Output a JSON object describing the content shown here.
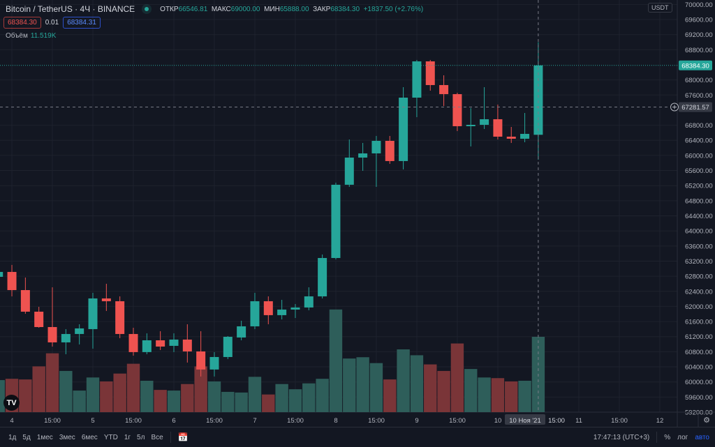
{
  "legend": {
    "title": "Bitcoin / TetherUS · 4Ч · BINANCE",
    "open_label": "ОТКР",
    "open": "66546.81",
    "high_label": "МАКС",
    "high": "69000.00",
    "low_label": "МИН",
    "low": "65888.00",
    "close_label": "ЗАКР",
    "close": "68384.30",
    "change": "+1837.50 (+2.76%)",
    "sell_price": "68384.30",
    "spread": "0.01",
    "buy_price": "68384.31",
    "volume_label": "Объём",
    "volume": "11.519K"
  },
  "price_axis": {
    "currency": "USDT",
    "labels": [
      "70000.00",
      "69600.00",
      "69200.00",
      "68800.00",
      "68000.00",
      "67600.00",
      "66800.00",
      "66400.00",
      "66000.00",
      "65600.00",
      "65200.00",
      "64800.00",
      "64400.00",
      "64000.00",
      "63600.00",
      "63200.00",
      "62800.00",
      "62400.00",
      "62000.00",
      "61600.00",
      "61200.00",
      "60800.00",
      "60400.00",
      "60000.00",
      "59600.00",
      "59200.00"
    ],
    "last_price": "68384.30",
    "crosshair_price": "67281.57"
  },
  "time_axis": {
    "labels": [
      "4",
      "15:00",
      "5",
      "15:00",
      "6",
      "15:00",
      "7",
      "15:00",
      "8",
      "15:00",
      "9",
      "15:00",
      "10",
      "15:00",
      "11",
      "15:00",
      "12"
    ],
    "crosshair_label": "10 Ноя '21"
  },
  "colors": {
    "up": "#26a69a",
    "down": "#ef5350",
    "vol_up": "#2e5e5a",
    "vol_down": "#7a3538",
    "bg": "#131722",
    "grid": "#1e222d"
  },
  "chart_data": {
    "type": "candlestick",
    "ylim": [
      59200,
      70000
    ],
    "candles": [
      [
        62784,
        62950,
        62750,
        62914
      ],
      [
        62914,
        63100,
        62267,
        62433
      ],
      [
        62433,
        62766,
        61806,
        61861
      ],
      [
        61861,
        61990,
        61436,
        61454
      ],
      [
        61454,
        62507,
        60937,
        61048
      ],
      [
        61048,
        61399,
        60734,
        61270
      ],
      [
        61270,
        61528,
        60993,
        61418
      ],
      [
        61399,
        62360,
        60882,
        62212
      ],
      [
        62212,
        62600,
        61880,
        62138
      ],
      [
        62138,
        62267,
        61159,
        61270
      ],
      [
        61270,
        61436,
        60697,
        60790
      ],
      [
        60790,
        61288,
        60734,
        61103
      ],
      [
        61103,
        61344,
        60845,
        60937
      ],
      [
        60956,
        61288,
        60790,
        61122
      ],
      [
        61122,
        61528,
        60513,
        60808
      ],
      [
        60808,
        61344,
        60144,
        60329
      ],
      [
        60329,
        60790,
        60144,
        60660
      ],
      [
        60660,
        61214,
        60605,
        61196
      ],
      [
        61177,
        61621,
        61103,
        61473
      ],
      [
        61473,
        62360,
        61399,
        62138
      ],
      [
        62138,
        62267,
        61528,
        61769
      ],
      [
        61769,
        62175,
        61657,
        61917
      ],
      [
        61917,
        62064,
        61694,
        61972
      ],
      [
        61972,
        62507,
        61898,
        62267
      ],
      [
        62267,
        63376,
        62212,
        63283
      ],
      [
        63283,
        65278,
        63246,
        65223
      ],
      [
        65223,
        66423,
        65167,
        65943
      ],
      [
        65943,
        66331,
        65592,
        66054
      ],
      [
        66054,
        66516,
        65167,
        66386
      ],
      [
        66386,
        66516,
        65777,
        65851
      ],
      [
        65851,
        67808,
        65629,
        67531
      ],
      [
        67531,
        68529,
        67014,
        68492
      ],
      [
        68492,
        68529,
        67716,
        67864
      ],
      [
        67864,
        68122,
        67310,
        67624
      ],
      [
        67624,
        67661,
        66645,
        66774
      ],
      [
        66774,
        67255,
        66238,
        66811
      ],
      [
        66811,
        67808,
        66700,
        66959
      ],
      [
        66959,
        67347,
        66423,
        66497
      ],
      [
        66497,
        66755,
        66331,
        66442
      ],
      [
        66442,
        67125,
        66349,
        66571
      ],
      [
        66546.81,
        69000,
        65888,
        68384.3
      ]
    ],
    "volumes_k": [
      4.9,
      5.1,
      5.0,
      7.0,
      9.0,
      6.3,
      3.3,
      5.3,
      4.7,
      5.9,
      7.4,
      4.8,
      3.4,
      3.3,
      4.3,
      7.0,
      4.7,
      3.1,
      3.0,
      5.4,
      2.7,
      4.3,
      3.5,
      4.4,
      5.1,
      15.7,
      8.2,
      8.4,
      7.5,
      5.0,
      9.6,
      8.7,
      7.3,
      6.3,
      10.5,
      6.6,
      5.3,
      5.2,
      4.7,
      4.8,
      11.519
    ]
  },
  "bottom_bar": {
    "ranges": [
      "1д",
      "5д",
      "1мес",
      "3мес",
      "6мес",
      "YTD",
      "1г",
      "5л",
      "Все"
    ],
    "clock": "17:47:13 (UTC+3)",
    "percent": "%",
    "log": "лог",
    "auto": "авто"
  },
  "logo": "TV"
}
